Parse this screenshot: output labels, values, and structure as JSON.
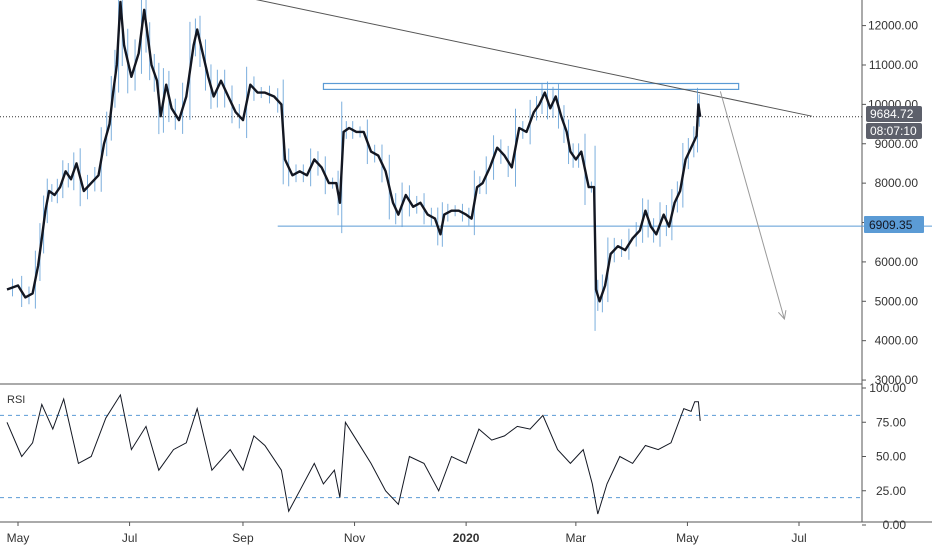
{
  "colors": {
    "background": "#ffffff",
    "axis_line": "#555555",
    "text": "#333333",
    "price_line": "#131722",
    "wick": "#5b9bd5",
    "support_line": "#5b9bd5",
    "resistance_box": "#5b9bd5",
    "trendline": "#555555",
    "projection_arrow": "#9a9a9a",
    "rsi_line": "#131722",
    "rsi_band": "#5b9bd5",
    "price_tag_bg": "#5d606b",
    "level_tag_bg": "#5b9bd5",
    "tag_text": "#ffffff",
    "level_tag_text": "#131722"
  },
  "tags": {
    "current_price": "9684.72",
    "countdown": "08:07:10",
    "level": "6909.35"
  },
  "chart_data": [
    {
      "type": "line",
      "title": "",
      "x_tick_labels": [
        "May",
        "Jul",
        "Sep",
        "Nov",
        "2020",
        "Mar",
        "May",
        "Jul"
      ],
      "y_tick_labels": [
        "3000.00",
        "4000.00",
        "5000.00",
        "6000.00",
        "7000.00",
        "8000.00",
        "9000.00",
        "10000.00",
        "11000.00",
        "12000.00"
      ],
      "ylim": [
        2900,
        12650
      ],
      "last_price": 9684.72,
      "grid": false,
      "annotations": {
        "resistance_zone": [
          10380,
          10530
        ],
        "support_level": 6909.35,
        "descending_trendline": [
          {
            "x": "2019-07-19",
            "y": 13160
          },
          {
            "x": "2020-07-08",
            "y": 9700
          }
        ],
        "projection_arrow": [
          {
            "x": "2020-05-19",
            "y": 10330
          },
          {
            "x": "2020-06-23",
            "y": 4550
          }
        ]
      },
      "series": [
        {
          "values": [
            {
              "x": "2019-04-25",
              "y": 5300
            },
            {
              "x": "2019-05-01",
              "y": 5400
            },
            {
              "x": "2019-05-05",
              "y": 5100
            },
            {
              "x": "2019-05-09",
              "y": 5200
            },
            {
              "x": "2019-05-12",
              "y": 5900
            },
            {
              "x": "2019-05-14",
              "y": 6600
            },
            {
              "x": "2019-05-16",
              "y": 7300
            },
            {
              "x": "2019-05-18",
              "y": 7800
            },
            {
              "x": "2019-05-21",
              "y": 7700
            },
            {
              "x": "2019-05-24",
              "y": 7900
            },
            {
              "x": "2019-05-27",
              "y": 8300
            },
            {
              "x": "2019-05-30",
              "y": 8100
            },
            {
              "x": "2019-06-02",
              "y": 8500
            },
            {
              "x": "2019-06-06",
              "y": 7800
            },
            {
              "x": "2019-06-10",
              "y": 8000
            },
            {
              "x": "2019-06-14",
              "y": 8200
            },
            {
              "x": "2019-06-17",
              "y": 9000
            },
            {
              "x": "2019-06-20",
              "y": 9500
            },
            {
              "x": "2019-06-22",
              "y": 10300
            },
            {
              "x": "2019-06-24",
              "y": 11000
            },
            {
              "x": "2019-06-26",
              "y": 12600
            },
            {
              "x": "2019-06-28",
              "y": 11500
            },
            {
              "x": "2019-07-02",
              "y": 10700
            },
            {
              "x": "2019-07-06",
              "y": 11300
            },
            {
              "x": "2019-07-09",
              "y": 12400
            },
            {
              "x": "2019-07-11",
              "y": 11700
            },
            {
              "x": "2019-07-13",
              "y": 11000
            },
            {
              "x": "2019-07-16",
              "y": 10600
            },
            {
              "x": "2019-07-18",
              "y": 9700
            },
            {
              "x": "2019-07-21",
              "y": 10500
            },
            {
              "x": "2019-07-24",
              "y": 9900
            },
            {
              "x": "2019-07-28",
              "y": 9600
            },
            {
              "x": "2019-08-01",
              "y": 10200
            },
            {
              "x": "2019-08-05",
              "y": 11500
            },
            {
              "x": "2019-08-07",
              "y": 11900
            },
            {
              "x": "2019-08-10",
              "y": 11300
            },
            {
              "x": "2019-08-13",
              "y": 10700
            },
            {
              "x": "2019-08-16",
              "y": 10200
            },
            {
              "x": "2019-08-20",
              "y": 10600
            },
            {
              "x": "2019-08-24",
              "y": 10200
            },
            {
              "x": "2019-08-28",
              "y": 9800
            },
            {
              "x": "2019-09-01",
              "y": 9600
            },
            {
              "x": "2019-09-05",
              "y": 10500
            },
            {
              "x": "2019-09-09",
              "y": 10300
            },
            {
              "x": "2019-09-13",
              "y": 10300
            },
            {
              "x": "2019-09-18",
              "y": 10200
            },
            {
              "x": "2019-09-22",
              "y": 10000
            },
            {
              "x": "2019-09-24",
              "y": 8600
            },
            {
              "x": "2019-09-28",
              "y": 8200
            },
            {
              "x": "2019-10-02",
              "y": 8300
            },
            {
              "x": "2019-10-06",
              "y": 8200
            },
            {
              "x": "2019-10-10",
              "y": 8600
            },
            {
              "x": "2019-10-14",
              "y": 8400
            },
            {
              "x": "2019-10-18",
              "y": 8000
            },
            {
              "x": "2019-10-22",
              "y": 8000
            },
            {
              "x": "2019-10-24",
              "y": 7500
            },
            {
              "x": "2019-10-26",
              "y": 9300
            },
            {
              "x": "2019-10-29",
              "y": 9400
            },
            {
              "x": "2019-11-02",
              "y": 9300
            },
            {
              "x": "2019-11-06",
              "y": 9300
            },
            {
              "x": "2019-11-10",
              "y": 8800
            },
            {
              "x": "2019-11-14",
              "y": 8700
            },
            {
              "x": "2019-11-18",
              "y": 8300
            },
            {
              "x": "2019-11-22",
              "y": 7500
            },
            {
              "x": "2019-11-25",
              "y": 7200
            },
            {
              "x": "2019-11-29",
              "y": 7700
            },
            {
              "x": "2019-12-03",
              "y": 7400
            },
            {
              "x": "2019-12-07",
              "y": 7500
            },
            {
              "x": "2019-12-11",
              "y": 7200
            },
            {
              "x": "2019-12-15",
              "y": 7100
            },
            {
              "x": "2019-12-18",
              "y": 6700
            },
            {
              "x": "2019-12-20",
              "y": 7200
            },
            {
              "x": "2019-12-24",
              "y": 7300
            },
            {
              "x": "2019-12-28",
              "y": 7300
            },
            {
              "x": "2020-01-01",
              "y": 7200
            },
            {
              "x": "2020-01-04",
              "y": 7100
            },
            {
              "x": "2020-01-07",
              "y": 7900
            },
            {
              "x": "2020-01-10",
              "y": 8000
            },
            {
              "x": "2020-01-14",
              "y": 8400
            },
            {
              "x": "2020-01-18",
              "y": 8900
            },
            {
              "x": "2020-01-22",
              "y": 8700
            },
            {
              "x": "2020-01-26",
              "y": 8400
            },
            {
              "x": "2020-01-30",
              "y": 9400
            },
            {
              "x": "2020-02-03",
              "y": 9300
            },
            {
              "x": "2020-02-07",
              "y": 9800
            },
            {
              "x": "2020-02-10",
              "y": 10000
            },
            {
              "x": "2020-02-13",
              "y": 10300
            },
            {
              "x": "2020-02-16",
              "y": 9900
            },
            {
              "x": "2020-02-19",
              "y": 10200
            },
            {
              "x": "2020-02-22",
              "y": 9700
            },
            {
              "x": "2020-02-25",
              "y": 9300
            },
            {
              "x": "2020-02-27",
              "y": 8800
            },
            {
              "x": "2020-03-01",
              "y": 8600
            },
            {
              "x": "2020-03-04",
              "y": 8800
            },
            {
              "x": "2020-03-08",
              "y": 7900
            },
            {
              "x": "2020-03-11",
              "y": 7900
            },
            {
              "x": "2020-03-12",
              "y": 5300
            },
            {
              "x": "2020-03-14",
              "y": 5000
            },
            {
              "x": "2020-03-17",
              "y": 5400
            },
            {
              "x": "2020-03-20",
              "y": 6200
            },
            {
              "x": "2020-03-24",
              "y": 6400
            },
            {
              "x": "2020-03-28",
              "y": 6300
            },
            {
              "x": "2020-04-01",
              "y": 6600
            },
            {
              "x": "2020-04-05",
              "y": 6800
            },
            {
              "x": "2020-04-08",
              "y": 7300
            },
            {
              "x": "2020-04-11",
              "y": 6900
            },
            {
              "x": "2020-04-14",
              "y": 6700
            },
            {
              "x": "2020-04-18",
              "y": 7200
            },
            {
              "x": "2020-04-21",
              "y": 6900
            },
            {
              "x": "2020-04-24",
              "y": 7500
            },
            {
              "x": "2020-04-27",
              "y": 7800
            },
            {
              "x": "2020-04-30",
              "y": 8600
            },
            {
              "x": "2020-05-03",
              "y": 8900
            },
            {
              "x": "2020-05-06",
              "y": 9200
            },
            {
              "x": "2020-05-07",
              "y": 10000
            },
            {
              "x": "2020-05-08",
              "y": 9684.72
            }
          ]
        }
      ]
    },
    {
      "type": "line",
      "title": "RSI",
      "y_tick_labels": [
        "0.00",
        "25.00",
        "50.00",
        "75.00",
        "100.00"
      ],
      "ylim": [
        0,
        100
      ],
      "bands": [
        20,
        80
      ],
      "series": [
        {
          "name": "RSI",
          "values": [
            {
              "x": "2019-04-25",
              "y": 75
            },
            {
              "x": "2019-05-03",
              "y": 50
            },
            {
              "x": "2019-05-09",
              "y": 60
            },
            {
              "x": "2019-05-14",
              "y": 88
            },
            {
              "x": "2019-05-20",
              "y": 70
            },
            {
              "x": "2019-05-26",
              "y": 92
            },
            {
              "x": "2019-06-03",
              "y": 45
            },
            {
              "x": "2019-06-10",
              "y": 50
            },
            {
              "x": "2019-06-18",
              "y": 78
            },
            {
              "x": "2019-06-26",
              "y": 95
            },
            {
              "x": "2019-07-02",
              "y": 55
            },
            {
              "x": "2019-07-10",
              "y": 72
            },
            {
              "x": "2019-07-17",
              "y": 40
            },
            {
              "x": "2019-07-25",
              "y": 55
            },
            {
              "x": "2019-08-01",
              "y": 60
            },
            {
              "x": "2019-08-07",
              "y": 85
            },
            {
              "x": "2019-08-15",
              "y": 40
            },
            {
              "x": "2019-08-25",
              "y": 55
            },
            {
              "x": "2019-09-01",
              "y": 40
            },
            {
              "x": "2019-09-07",
              "y": 65
            },
            {
              "x": "2019-09-13",
              "y": 58
            },
            {
              "x": "2019-09-22",
              "y": 40
            },
            {
              "x": "2019-09-26",
              "y": 10
            },
            {
              "x": "2019-10-02",
              "y": 25
            },
            {
              "x": "2019-10-10",
              "y": 45
            },
            {
              "x": "2019-10-15",
              "y": 30
            },
            {
              "x": "2019-10-21",
              "y": 40
            },
            {
              "x": "2019-10-24",
              "y": 20
            },
            {
              "x": "2019-10-27",
              "y": 75
            },
            {
              "x": "2019-11-03",
              "y": 60
            },
            {
              "x": "2019-11-10",
              "y": 45
            },
            {
              "x": "2019-11-18",
              "y": 25
            },
            {
              "x": "2019-11-25",
              "y": 15
            },
            {
              "x": "2019-12-01",
              "y": 50
            },
            {
              "x": "2019-12-09",
              "y": 45
            },
            {
              "x": "2019-12-17",
              "y": 25
            },
            {
              "x": "2019-12-24",
              "y": 50
            },
            {
              "x": "2020-01-01",
              "y": 45
            },
            {
              "x": "2020-01-08",
              "y": 70
            },
            {
              "x": "2020-01-15",
              "y": 62
            },
            {
              "x": "2020-01-22",
              "y": 65
            },
            {
              "x": "2020-01-29",
              "y": 72
            },
            {
              "x": "2020-02-05",
              "y": 70
            },
            {
              "x": "2020-02-12",
              "y": 80
            },
            {
              "x": "2020-02-20",
              "y": 55
            },
            {
              "x": "2020-02-27",
              "y": 45
            },
            {
              "x": "2020-03-05",
              "y": 55
            },
            {
              "x": "2020-03-10",
              "y": 30
            },
            {
              "x": "2020-03-13",
              "y": 8
            },
            {
              "x": "2020-03-18",
              "y": 30
            },
            {
              "x": "2020-03-25",
              "y": 50
            },
            {
              "x": "2020-04-01",
              "y": 45
            },
            {
              "x": "2020-04-08",
              "y": 58
            },
            {
              "x": "2020-04-15",
              "y": 55
            },
            {
              "x": "2020-04-22",
              "y": 60
            },
            {
              "x": "2020-04-29",
              "y": 85
            },
            {
              "x": "2020-05-03",
              "y": 83
            },
            {
              "x": "2020-05-05",
              "y": 90
            },
            {
              "x": "2020-05-07",
              "y": 90
            },
            {
              "x": "2020-05-08",
              "y": 76
            }
          ]
        }
      ]
    }
  ]
}
